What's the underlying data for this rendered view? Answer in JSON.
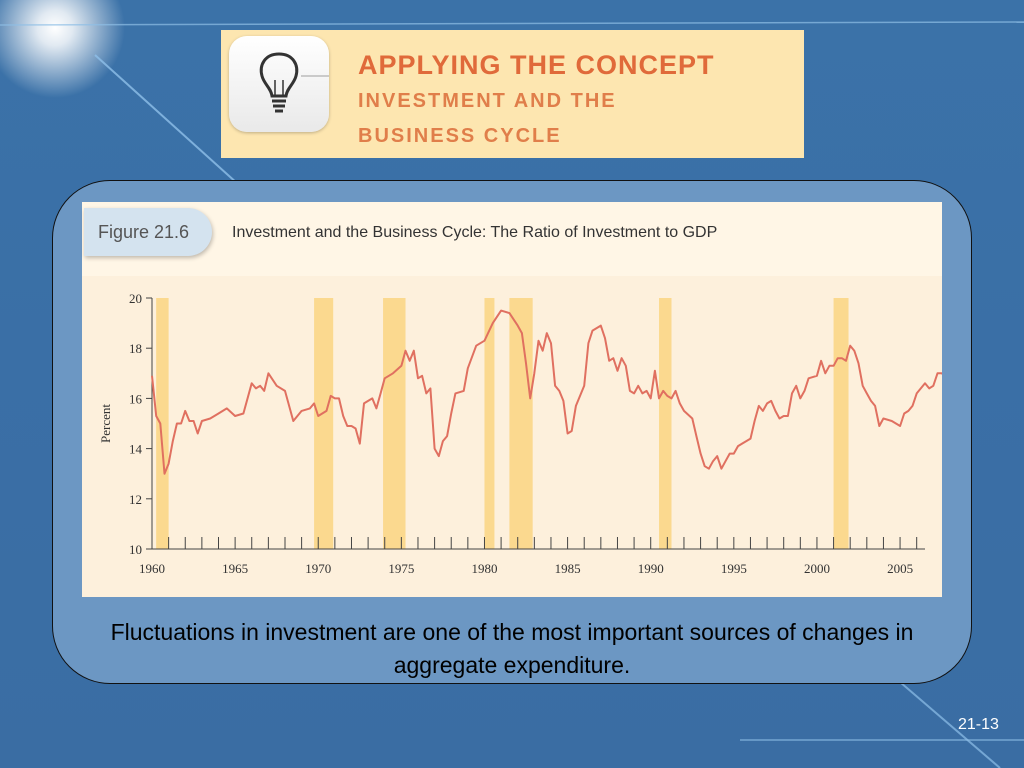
{
  "banner": {
    "title": "APPLYING THE CONCEPT",
    "subtitle_line1": "INVESTMENT AND THE",
    "subtitle_line2": "BUSINESS CYCLE",
    "icon": "lightbulb-icon"
  },
  "figure": {
    "label": "Figure 21.6",
    "title": "Investment and the Business Cycle: The Ratio of Investment to GDP"
  },
  "chart_data": {
    "type": "line",
    "title": "Investment and the Business Cycle: The Ratio of Investment to GDP",
    "xlabel": "",
    "ylabel": "Percent",
    "xlim": [
      1960,
      2006.5
    ],
    "ylim": [
      10,
      20
    ],
    "x_ticks": [
      1960,
      1965,
      1970,
      1975,
      1980,
      1985,
      1990,
      1995,
      2000,
      2005
    ],
    "y_ticks": [
      10,
      12,
      14,
      16,
      18,
      20
    ],
    "line_color": "#e07060",
    "recession_color": "#fbd98f",
    "recessions": [
      [
        1960.25,
        1961.0
      ],
      [
        1969.75,
        1970.9
      ],
      [
        1973.9,
        1975.25
      ],
      [
        1980.0,
        1980.6
      ],
      [
        1981.5,
        1982.9
      ],
      [
        1990.5,
        1991.25
      ],
      [
        2001.0,
        2001.9
      ]
    ],
    "series": [
      {
        "values": [
          [
            1960.0,
            16.9
          ],
          [
            1960.25,
            15.3
          ],
          [
            1960.5,
            15.0
          ],
          [
            1960.75,
            13.0
          ],
          [
            1961.0,
            13.4
          ],
          [
            1961.25,
            14.3
          ],
          [
            1961.5,
            15.0
          ],
          [
            1961.75,
            15.0
          ],
          [
            1962.0,
            15.5
          ],
          [
            1962.25,
            15.1
          ],
          [
            1962.5,
            15.1
          ],
          [
            1962.75,
            14.6
          ],
          [
            1963.0,
            15.1
          ],
          [
            1963.5,
            15.2
          ],
          [
            1964.0,
            15.4
          ],
          [
            1964.5,
            15.6
          ],
          [
            1965.0,
            15.3
          ],
          [
            1965.5,
            15.4
          ],
          [
            1966.0,
            16.6
          ],
          [
            1966.25,
            16.4
          ],
          [
            1966.5,
            16.5
          ],
          [
            1966.75,
            16.3
          ],
          [
            1967.0,
            17.0
          ],
          [
            1967.5,
            16.5
          ],
          [
            1968.0,
            16.3
          ],
          [
            1968.5,
            15.1
          ],
          [
            1969.0,
            15.5
          ],
          [
            1969.5,
            15.6
          ],
          [
            1969.75,
            15.8
          ],
          [
            1970.0,
            15.3
          ],
          [
            1970.5,
            15.5
          ],
          [
            1970.75,
            16.1
          ],
          [
            1971.0,
            16.0
          ],
          [
            1971.25,
            16.0
          ],
          [
            1971.5,
            15.3
          ],
          [
            1971.75,
            14.9
          ],
          [
            1972.0,
            14.9
          ],
          [
            1972.25,
            14.8
          ],
          [
            1972.5,
            14.2
          ],
          [
            1972.75,
            15.8
          ],
          [
            1973.0,
            15.9
          ],
          [
            1973.25,
            16.0
          ],
          [
            1973.5,
            15.6
          ],
          [
            1973.75,
            16.2
          ],
          [
            1974.0,
            16.8
          ],
          [
            1974.5,
            17.0
          ],
          [
            1975.0,
            17.3
          ],
          [
            1975.25,
            17.9
          ],
          [
            1975.5,
            17.5
          ],
          [
            1975.75,
            17.9
          ],
          [
            1976.0,
            16.8
          ],
          [
            1976.25,
            16.9
          ],
          [
            1976.5,
            16.2
          ],
          [
            1976.75,
            16.4
          ],
          [
            1977.0,
            14.0
          ],
          [
            1977.25,
            13.7
          ],
          [
            1977.5,
            14.3
          ],
          [
            1977.75,
            14.5
          ],
          [
            1978.0,
            15.4
          ],
          [
            1978.25,
            16.2
          ],
          [
            1978.75,
            16.3
          ],
          [
            1979.0,
            17.2
          ],
          [
            1979.5,
            18.1
          ],
          [
            1980.0,
            18.3
          ],
          [
            1980.5,
            19.0
          ],
          [
            1981.0,
            19.5
          ],
          [
            1981.5,
            19.4
          ],
          [
            1982.0,
            18.9
          ],
          [
            1982.25,
            18.6
          ],
          [
            1982.5,
            17.4
          ],
          [
            1982.75,
            16.0
          ],
          [
            1983.0,
            17.0
          ],
          [
            1983.25,
            18.3
          ],
          [
            1983.5,
            17.9
          ],
          [
            1983.75,
            18.6
          ],
          [
            1984.0,
            18.2
          ],
          [
            1984.25,
            16.5
          ],
          [
            1984.5,
            16.3
          ],
          [
            1984.75,
            15.9
          ],
          [
            1985.0,
            14.6
          ],
          [
            1985.25,
            14.7
          ],
          [
            1985.5,
            15.7
          ],
          [
            1986.0,
            16.5
          ],
          [
            1986.25,
            18.2
          ],
          [
            1986.5,
            18.7
          ],
          [
            1987.0,
            18.9
          ],
          [
            1987.25,
            18.4
          ],
          [
            1987.5,
            17.5
          ],
          [
            1987.75,
            17.6
          ],
          [
            1988.0,
            17.1
          ],
          [
            1988.25,
            17.6
          ],
          [
            1988.5,
            17.3
          ],
          [
            1988.75,
            16.3
          ],
          [
            1989.0,
            16.2
          ],
          [
            1989.25,
            16.5
          ],
          [
            1989.5,
            16.2
          ],
          [
            1989.75,
            16.3
          ],
          [
            1990.0,
            16.0
          ],
          [
            1990.25,
            17.1
          ],
          [
            1990.5,
            16.0
          ],
          [
            1990.75,
            16.3
          ],
          [
            1991.0,
            16.1
          ],
          [
            1991.25,
            16.0
          ],
          [
            1991.5,
            16.3
          ],
          [
            1991.75,
            15.8
          ],
          [
            1992.0,
            15.5
          ],
          [
            1992.5,
            15.2
          ],
          [
            1992.75,
            14.5
          ],
          [
            1993.0,
            13.8
          ],
          [
            1993.25,
            13.3
          ],
          [
            1993.5,
            13.2
          ],
          [
            1993.75,
            13.5
          ],
          [
            1994.0,
            13.7
          ],
          [
            1994.25,
            13.2
          ],
          [
            1994.5,
            13.5
          ],
          [
            1994.75,
            13.8
          ],
          [
            1995.0,
            13.8
          ],
          [
            1995.25,
            14.1
          ],
          [
            1995.5,
            14.2
          ],
          [
            1996.0,
            14.4
          ],
          [
            1996.25,
            15.1
          ],
          [
            1996.5,
            15.7
          ],
          [
            1996.75,
            15.5
          ],
          [
            1997.0,
            15.8
          ],
          [
            1997.25,
            15.9
          ],
          [
            1997.5,
            15.5
          ],
          [
            1997.75,
            15.2
          ],
          [
            1998.0,
            15.3
          ],
          [
            1998.25,
            15.3
          ],
          [
            1998.5,
            16.2
          ],
          [
            1998.75,
            16.5
          ],
          [
            1999.0,
            16.0
          ],
          [
            1999.25,
            16.3
          ],
          [
            1999.5,
            16.8
          ],
          [
            2000.0,
            16.9
          ],
          [
            2000.25,
            17.5
          ],
          [
            2000.5,
            17.0
          ],
          [
            2000.75,
            17.3
          ],
          [
            2001.0,
            17.3
          ],
          [
            2001.25,
            17.6
          ],
          [
            2001.5,
            17.6
          ],
          [
            2001.75,
            17.5
          ],
          [
            2002.0,
            18.1
          ],
          [
            2002.25,
            17.9
          ],
          [
            2002.5,
            17.4
          ],
          [
            2002.75,
            16.5
          ],
          [
            2003.0,
            16.2
          ],
          [
            2003.25,
            15.9
          ],
          [
            2003.5,
            15.7
          ],
          [
            2003.75,
            14.9
          ],
          [
            2004.0,
            15.2
          ],
          [
            2004.5,
            15.1
          ],
          [
            2005.0,
            14.9
          ],
          [
            2005.25,
            15.4
          ],
          [
            2005.5,
            15.5
          ],
          [
            2005.75,
            15.7
          ],
          [
            2006.0,
            16.2
          ],
          [
            2006.5,
            16.6
          ],
          [
            2006.75,
            16.4
          ],
          [
            2007.0,
            16.5
          ],
          [
            2007.25,
            17.0
          ],
          [
            2007.5,
            17.0
          ],
          [
            2007.75,
            16.9
          ]
        ]
      }
    ]
  },
  "caption": "Fluctuations in investment are one of the most important sources of changes in aggregate expenditure.",
  "page_number": "21-13"
}
